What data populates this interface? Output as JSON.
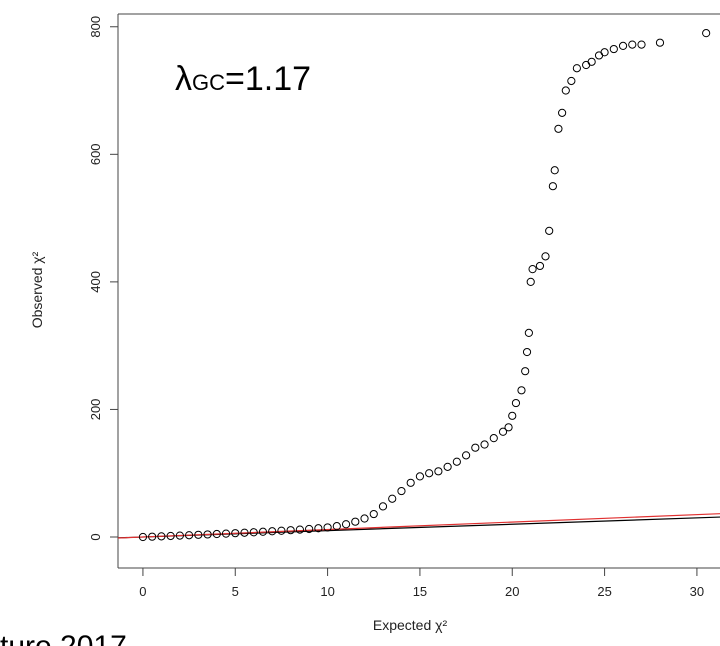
{
  "chart_data": {
    "type": "scatter",
    "x": [
      0,
      0.5,
      1,
      1.5,
      2,
      2.5,
      3,
      3.5,
      4,
      4.5,
      5,
      5.5,
      6,
      6.5,
      7,
      7.5,
      8,
      8.5,
      9,
      9.5,
      10,
      10.5,
      11,
      11.5,
      12,
      12.5,
      13,
      13.5,
      14,
      14.5,
      15,
      15.5,
      16,
      16.5,
      17,
      17.5,
      18,
      18.5,
      19,
      19.5,
      19.8,
      20,
      20.2,
      20.5,
      20.7,
      20.8,
      20.9,
      21,
      21.1,
      21.5,
      21.8,
      22,
      22.2,
      22.3,
      22.5,
      22.7,
      22.9,
      23.2,
      23.5,
      24,
      24.3,
      24.7,
      25,
      25.5,
      26,
      26.5,
      27,
      28,
      30.5
    ],
    "values": [
      0,
      0.5,
      1,
      1.6,
      2.2,
      2.8,
      3.4,
      4,
      4.7,
      5.3,
      6,
      6.7,
      7.4,
      8.2,
      9,
      9.8,
      10.7,
      11.6,
      12.6,
      13.7,
      15,
      17,
      20,
      24,
      29,
      36,
      48,
      60,
      72,
      85,
      95,
      100,
      103,
      110,
      118,
      128,
      140,
      145,
      155,
      165,
      172,
      190,
      210,
      230,
      260,
      290,
      320,
      400,
      420,
      425,
      440,
      480,
      550,
      575,
      640,
      665,
      700,
      715,
      735,
      740,
      745,
      755,
      760,
      765,
      770,
      772,
      772,
      775,
      790
    ],
    "color": "#000000",
    "xlabel": "Expected χ²",
    "ylabel": "Observed χ²",
    "xlim": [
      -1.35,
      31.25
    ],
    "ylim": [
      -48.6,
      820
    ],
    "xticks": [
      0,
      5,
      10,
      15,
      20,
      25,
      30
    ],
    "yticks": [
      0,
      200,
      400,
      600,
      800
    ],
    "reference_lines": [
      {
        "slope": 1,
        "color": "#000000"
      },
      {
        "slope": 1.17,
        "color": "#e03030"
      }
    ],
    "annotation": {
      "symbol": "λ",
      "subscript": "GC",
      "text": "=1.17"
    },
    "source": "ture 2017"
  }
}
